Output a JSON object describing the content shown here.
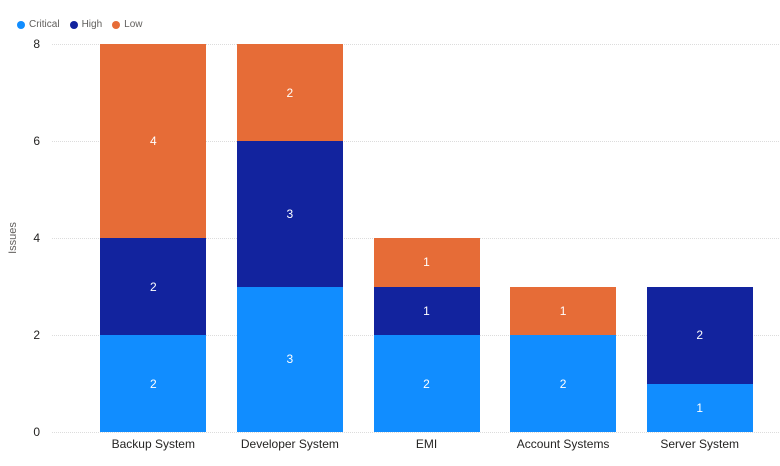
{
  "chart_data": {
    "type": "bar",
    "stacked": true,
    "title": "",
    "xlabel": "",
    "ylabel": "Issues",
    "categories": [
      "Backup System",
      "Developer System",
      "EMI",
      "Account Systems",
      "Server System"
    ],
    "series": [
      {
        "name": "Critical",
        "color": "#118DFF",
        "values": [
          2,
          3,
          2,
          2,
          1
        ]
      },
      {
        "name": "High",
        "color": "#12239E",
        "values": [
          2,
          3,
          1,
          0,
          2
        ]
      },
      {
        "name": "Low",
        "color": "#E66C37",
        "values": [
          4,
          2,
          1,
          1,
          0
        ]
      }
    ],
    "stack_order_bottom_to_top": [
      "Critical",
      "High",
      "Low"
    ],
    "totals": [
      8,
      8,
      4,
      3,
      3
    ],
    "ylim": [
      0,
      8
    ],
    "yticks": [
      0,
      2,
      4,
      6,
      8
    ],
    "grid": "horizontal-dotted",
    "legend_position": "top-left",
    "data_labels": true,
    "data_label_color": "#ffffff"
  }
}
